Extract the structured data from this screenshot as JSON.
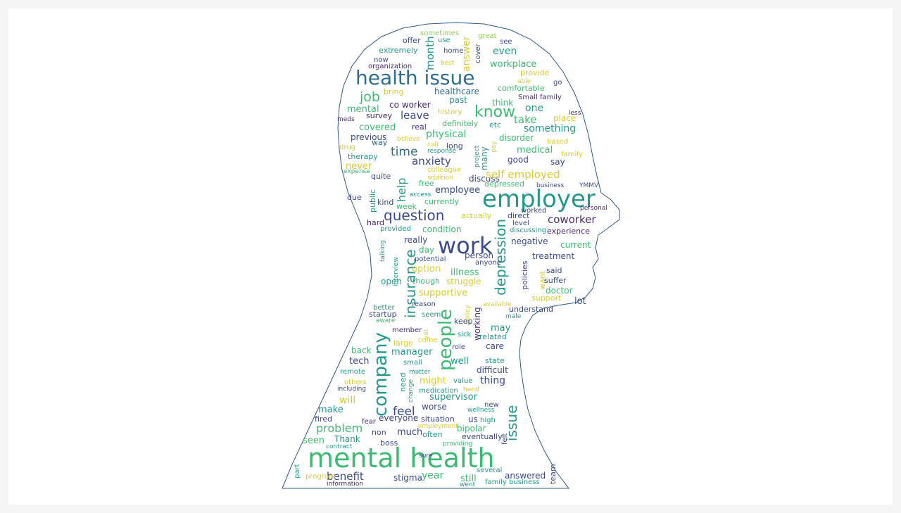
{
  "palette": {
    "yellow": "#d8cb2f",
    "lime": "#8fcf4a",
    "green": "#3dba72",
    "teal": "#22998a",
    "blue": "#2f6c8e",
    "indigo": "#3b4a8a",
    "purple": "#4a2a6e",
    "outline": "#2c5a8e",
    "page": "#f5f5f5",
    "canvas": "#ffffff"
  },
  "words": [
    {
      "text": "sometimes",
      "color": "lime"
    },
    {
      "text": "great",
      "color": "lime"
    },
    {
      "text": "offer",
      "color": "indigo"
    },
    {
      "text": "use",
      "color": "teal"
    },
    {
      "text": "see",
      "color": "indigo"
    },
    {
      "text": "extremely",
      "color": "teal"
    },
    {
      "text": "home",
      "color": "indigo"
    },
    {
      "text": "cover",
      "color": "indigo"
    },
    {
      "text": "even",
      "color": "teal"
    },
    {
      "text": "now",
      "color": "indigo"
    },
    {
      "text": "organization",
      "color": "purple"
    },
    {
      "text": "best",
      "color": "yellow"
    },
    {
      "text": "workplace",
      "color": "green"
    },
    {
      "text": "month",
      "color": "teal"
    },
    {
      "text": "answer",
      "color": "yellow"
    },
    {
      "text": "provide",
      "color": "yellow"
    },
    {
      "text": "health issue",
      "color": "blue"
    },
    {
      "text": "able",
      "color": "yellow"
    },
    {
      "text": "go",
      "color": "indigo"
    },
    {
      "text": "comfortable",
      "color": "green"
    },
    {
      "text": "job",
      "color": "green"
    },
    {
      "text": "bring",
      "color": "yellow"
    },
    {
      "text": "healthcare",
      "color": "blue"
    },
    {
      "text": "Small family",
      "color": "purple"
    },
    {
      "text": "past",
      "color": "teal"
    },
    {
      "text": "think",
      "color": "green"
    },
    {
      "text": "co worker",
      "color": "purple"
    },
    {
      "text": "one",
      "color": "teal"
    },
    {
      "text": "know",
      "color": "green"
    },
    {
      "text": "mental",
      "color": "green"
    },
    {
      "text": "history",
      "color": "yellow"
    },
    {
      "text": "less",
      "color": "purple"
    },
    {
      "text": "survey",
      "color": "purple"
    },
    {
      "text": "leave",
      "color": "indigo"
    },
    {
      "text": "take",
      "color": "green"
    },
    {
      "text": "place",
      "color": "yellow"
    },
    {
      "text": "meds",
      "color": "purple"
    },
    {
      "text": "real",
      "color": "purple"
    },
    {
      "text": "definitely",
      "color": "green"
    },
    {
      "text": "etc",
      "color": "teal"
    },
    {
      "text": "something",
      "color": "teal"
    },
    {
      "text": "covered",
      "color": "green"
    },
    {
      "text": "physical",
      "color": "green"
    },
    {
      "text": "previous",
      "color": "indigo"
    },
    {
      "text": "believe",
      "color": "yellow"
    },
    {
      "text": "disorder",
      "color": "green"
    },
    {
      "text": "based",
      "color": "yellow"
    },
    {
      "text": "way",
      "color": "blue"
    },
    {
      "text": "call",
      "color": "yellow"
    },
    {
      "text": "long",
      "color": "indigo"
    },
    {
      "text": "project",
      "color": "teal"
    },
    {
      "text": "pay",
      "color": "yellow"
    },
    {
      "text": "drug",
      "color": "yellow"
    },
    {
      "text": "time",
      "color": "blue"
    },
    {
      "text": "response",
      "color": "teal"
    },
    {
      "text": "medical",
      "color": "green"
    },
    {
      "text": "family",
      "color": "yellow"
    },
    {
      "text": "therapy",
      "color": "teal"
    },
    {
      "text": "anxiety",
      "color": "indigo"
    },
    {
      "text": "many",
      "color": "teal"
    },
    {
      "text": "good",
      "color": "indigo"
    },
    {
      "text": "say",
      "color": "indigo"
    },
    {
      "text": "never",
      "color": "yellow"
    },
    {
      "text": "colleague",
      "color": "yellow"
    },
    {
      "text": "expense",
      "color": "green"
    },
    {
      "text": "quite",
      "color": "indigo"
    },
    {
      "text": "help",
      "color": "teal"
    },
    {
      "text": "addition",
      "color": "yellow"
    },
    {
      "text": "discuss",
      "color": "indigo"
    },
    {
      "text": "self employed",
      "color": "yellow"
    },
    {
      "text": "free",
      "color": "green"
    },
    {
      "text": "depressed",
      "color": "green"
    },
    {
      "text": "business",
      "color": "indigo"
    },
    {
      "text": "YMMV",
      "color": "indigo"
    },
    {
      "text": "public",
      "color": "teal"
    },
    {
      "text": "access",
      "color": "teal"
    },
    {
      "text": "employee",
      "color": "indigo"
    },
    {
      "text": "employer",
      "color": "teal"
    },
    {
      "text": "due",
      "color": "indigo"
    },
    {
      "text": "kind",
      "color": "indigo"
    },
    {
      "text": "currently",
      "color": "green"
    },
    {
      "text": "week",
      "color": "green"
    },
    {
      "text": "worked",
      "color": "indigo"
    },
    {
      "text": "personal",
      "color": "purple"
    },
    {
      "text": "question",
      "color": "indigo"
    },
    {
      "text": "actually",
      "color": "yellow"
    },
    {
      "text": "direct",
      "color": "indigo"
    },
    {
      "text": "hard",
      "color": "purple"
    },
    {
      "text": "level",
      "color": "indigo"
    },
    {
      "text": "coworker",
      "color": "purple"
    },
    {
      "text": "provided",
      "color": "teal"
    },
    {
      "text": "condition",
      "color": "green"
    },
    {
      "text": "discussing",
      "color": "teal"
    },
    {
      "text": "experience",
      "color": "purple"
    },
    {
      "text": "talking",
      "color": "teal"
    },
    {
      "text": "work",
      "color": "indigo"
    },
    {
      "text": "depression",
      "color": "teal"
    },
    {
      "text": "really",
      "color": "indigo"
    },
    {
      "text": "negative",
      "color": "indigo"
    },
    {
      "text": "current",
      "color": "green"
    },
    {
      "text": "day",
      "color": "green"
    },
    {
      "text": "person",
      "color": "indigo"
    },
    {
      "text": "interview",
      "color": "teal"
    },
    {
      "text": "potential",
      "color": "indigo"
    },
    {
      "text": "anyone",
      "color": "indigo"
    },
    {
      "text": "treatment",
      "color": "indigo"
    },
    {
      "text": "insurance",
      "color": "teal"
    },
    {
      "text": "option",
      "color": "yellow"
    },
    {
      "text": "illness",
      "color": "green"
    },
    {
      "text": "said",
      "color": "indigo"
    },
    {
      "text": "policies",
      "color": "indigo"
    },
    {
      "text": "want",
      "color": "yellow"
    },
    {
      "text": "open",
      "color": "teal"
    },
    {
      "text": "though",
      "color": "green"
    },
    {
      "text": "struggle",
      "color": "yellow"
    },
    {
      "text": "suffer",
      "color": "indigo"
    },
    {
      "text": "supportive",
      "color": "yellow"
    },
    {
      "text": "doctor",
      "color": "green"
    },
    {
      "text": "working",
      "color": "purple"
    },
    {
      "text": "support",
      "color": "yellow"
    },
    {
      "text": "lot",
      "color": "indigo"
    },
    {
      "text": "reason",
      "color": "indigo"
    },
    {
      "text": "policy",
      "color": "yellow"
    },
    {
      "text": "available",
      "color": "yellow"
    },
    {
      "text": "better",
      "color": "teal"
    },
    {
      "text": "people",
      "color": "green"
    },
    {
      "text": "understand",
      "color": "indigo"
    },
    {
      "text": "startup",
      "color": "indigo"
    },
    {
      "text": "seem",
      "color": "teal"
    },
    {
      "text": "male",
      "color": "teal"
    },
    {
      "text": "aware",
      "color": "green"
    },
    {
      "text": "keep",
      "color": "indigo"
    },
    {
      "text": "may",
      "color": "teal"
    },
    {
      "text": "member",
      "color": "purple"
    },
    {
      "text": "yet",
      "color": "yellow"
    },
    {
      "text": "sick",
      "color": "teal"
    },
    {
      "text": "related",
      "color": "teal"
    },
    {
      "text": "come",
      "color": "yellow"
    },
    {
      "text": "company",
      "color": "teal"
    },
    {
      "text": "large",
      "color": "yellow"
    },
    {
      "text": "role",
      "color": "indigo"
    },
    {
      "text": "care",
      "color": "indigo"
    },
    {
      "text": "back",
      "color": "green"
    },
    {
      "text": "manager",
      "color": "teal"
    },
    {
      "text": "tech",
      "color": "indigo"
    },
    {
      "text": "small",
      "color": "teal"
    },
    {
      "text": "well",
      "color": "teal"
    },
    {
      "text": "state",
      "color": "teal"
    },
    {
      "text": "remote",
      "color": "teal"
    },
    {
      "text": "matter",
      "color": "teal"
    },
    {
      "text": "difficult",
      "color": "indigo"
    },
    {
      "text": "need",
      "color": "teal"
    },
    {
      "text": "thing",
      "color": "indigo"
    },
    {
      "text": "others",
      "color": "yellow"
    },
    {
      "text": "might",
      "color": "yellow"
    },
    {
      "text": "value",
      "color": "teal"
    },
    {
      "text": "change",
      "color": "teal"
    },
    {
      "text": "hand",
      "color": "yellow"
    },
    {
      "text": "including",
      "color": "indigo"
    },
    {
      "text": "medication",
      "color": "teal"
    },
    {
      "text": "issue",
      "color": "teal"
    },
    {
      "text": "will",
      "color": "yellow"
    },
    {
      "text": "supervisor",
      "color": "teal"
    },
    {
      "text": "new",
      "color": "indigo"
    },
    {
      "text": "make",
      "color": "teal"
    },
    {
      "text": "feel",
      "color": "indigo"
    },
    {
      "text": "worse",
      "color": "indigo"
    },
    {
      "text": "wellness",
      "color": "teal"
    },
    {
      "text": "everyone",
      "color": "indigo"
    },
    {
      "text": "situation",
      "color": "indigo"
    },
    {
      "text": "us",
      "color": "indigo"
    },
    {
      "text": "high",
      "color": "teal"
    },
    {
      "text": "fired",
      "color": "indigo"
    },
    {
      "text": "fear",
      "color": "purple"
    },
    {
      "text": "problem",
      "color": "green"
    },
    {
      "text": "employment",
      "color": "yellow"
    },
    {
      "text": "bipolar",
      "color": "green"
    },
    {
      "text": "felt",
      "color": "indigo"
    },
    {
      "text": "non",
      "color": "indigo"
    },
    {
      "text": "much",
      "color": "indigo"
    },
    {
      "text": "often",
      "color": "teal"
    },
    {
      "text": "eventually",
      "color": "indigo"
    },
    {
      "text": "seen",
      "color": "green"
    },
    {
      "text": "Thank",
      "color": "teal"
    },
    {
      "text": "boss",
      "color": "indigo"
    },
    {
      "text": "providing",
      "color": "green"
    },
    {
      "text": "contract",
      "color": "teal"
    },
    {
      "text": "mental health",
      "color": "green"
    },
    {
      "text": "sure",
      "color": "indigo"
    },
    {
      "text": "several",
      "color": "teal"
    },
    {
      "text": "team",
      "color": "indigo"
    },
    {
      "text": "part",
      "color": "teal"
    },
    {
      "text": "benefit",
      "color": "indigo"
    },
    {
      "text": "year",
      "color": "green"
    },
    {
      "text": "answered",
      "color": "indigo"
    },
    {
      "text": "program",
      "color": "yellow"
    },
    {
      "text": "stigma",
      "color": "indigo"
    },
    {
      "text": "still",
      "color": "green"
    },
    {
      "text": "family business",
      "color": "teal"
    },
    {
      "text": "information",
      "color": "purple"
    },
    {
      "text": "went",
      "color": "teal"
    }
  ]
}
